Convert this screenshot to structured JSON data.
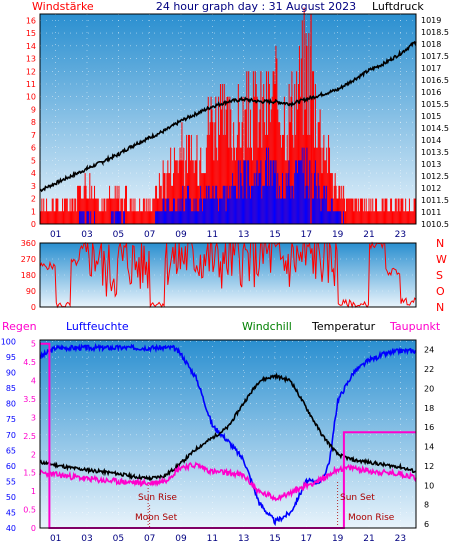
{
  "colors": {
    "red": "#ff0000",
    "blue": "#0000ff",
    "black": "#000000",
    "green": "#008000",
    "magenta": "#ff00cc",
    "navy": "#000080",
    "bg_top": "#2a8fd0",
    "bg_bottom": "#e8f3fb"
  },
  "chart_data": [
    {
      "type": "line",
      "title": "24 hour graph day : 31 August 2023",
      "left_label": "Windstärke",
      "right_label": "Luftdruck",
      "x_ticks": [
        "01",
        "03",
        "05",
        "07",
        "09",
        "11",
        "13",
        "15",
        "17",
        "19",
        "21",
        "23"
      ],
      "x_range": [
        0,
        24
      ],
      "y_left_ticks": [
        0,
        1,
        2,
        3,
        4,
        5,
        6,
        7,
        8,
        9,
        10,
        11,
        12,
        13,
        14,
        15,
        16
      ],
      "y_left_range": [
        0,
        16.5
      ],
      "y_right_ticks": [
        "1010.5",
        "1011",
        "1011.5",
        "1012",
        "1012.5",
        "1013",
        "1013.5",
        "1014",
        "1014.5",
        "1015",
        "1015.5",
        "1016",
        "1016.5",
        "1017",
        "1017.5",
        "1018",
        "1018.5",
        "1019"
      ],
      "y_right_range": [
        1010.5,
        1019.25
      ],
      "series": [
        {
          "color": "#000000",
          "axis": "right",
          "x": [
            0,
            1,
            2,
            3,
            4,
            5,
            6,
            7,
            8,
            9,
            10,
            11,
            12,
            13,
            14,
            15,
            16,
            17,
            18,
            19,
            20,
            21,
            22,
            23,
            24
          ],
          "y": [
            1011.9,
            1012.2,
            1012.5,
            1012.8,
            1013.1,
            1013.4,
            1013.8,
            1014.1,
            1014.4,
            1014.8,
            1015.1,
            1015.4,
            1015.6,
            1015.7,
            1015.6,
            1015.6,
            1015.5,
            1015.7,
            1015.9,
            1016.1,
            1016.5,
            1016.9,
            1017.2,
            1017.6,
            1018.1
          ]
        },
        {
          "color": "#ff0000",
          "axis": "left",
          "style": "gust",
          "x": [
            0,
            1,
            2,
            3,
            4,
            5,
            6,
            7,
            8,
            9,
            10,
            11,
            12,
            13,
            14,
            15,
            16,
            17,
            18,
            19,
            20,
            21,
            22,
            23,
            24
          ],
          "y": [
            2,
            2,
            2,
            4,
            2,
            3,
            2,
            2,
            5,
            7,
            6,
            11,
            9,
            10,
            11,
            12,
            11,
            16,
            9,
            3,
            2,
            2,
            2,
            2,
            2
          ]
        },
        {
          "color": "#0000ff",
          "axis": "left",
          "style": "mean",
          "x": [
            0,
            1,
            2,
            3,
            4,
            5,
            6,
            7,
            8,
            9,
            10,
            11,
            12,
            13,
            14,
            15,
            16,
            17,
            18,
            19,
            20,
            21,
            22,
            23,
            24
          ],
          "y": [
            0,
            0,
            0,
            1,
            0,
            1,
            0,
            0,
            2,
            2,
            2,
            3,
            3,
            4,
            4,
            5,
            4,
            5,
            3,
            1,
            0,
            0,
            0,
            0,
            0
          ]
        }
      ]
    },
    {
      "type": "line",
      "title": "",
      "y_left_ticks": [
        0,
        90,
        180,
        270,
        360
      ],
      "y_left_range": [
        0,
        360
      ],
      "right_labels": [
        "N",
        "W",
        "S",
        "O",
        "N"
      ],
      "series": [
        {
          "color": "#ff0000",
          "style": "direction",
          "x": [
            0,
            1,
            2,
            3,
            4,
            5,
            6,
            7,
            8,
            9,
            10,
            11,
            12,
            13,
            14,
            15,
            16,
            17,
            18,
            19,
            20,
            21,
            22,
            23,
            24
          ],
          "y": [
            230,
            10,
            250,
            300,
            200,
            260,
            240,
            20,
            270,
            290,
            280,
            260,
            280,
            270,
            300,
            250,
            270,
            290,
            270,
            20,
            10,
            350,
            200,
            30,
            260
          ]
        }
      ]
    },
    {
      "type": "line",
      "title": "",
      "legend": [
        "Regen",
        "Luftfeuchte",
        "Windchill",
        "Temperatur",
        "Taupunkt"
      ],
      "x_ticks": [
        "01",
        "03",
        "05",
        "07",
        "09",
        "11",
        "13",
        "15",
        "17",
        "19",
        "21",
        "23"
      ],
      "x_range": [
        0,
        24
      ],
      "y_humidity_ticks": [
        40,
        45,
        50,
        55,
        60,
        65,
        70,
        75,
        80,
        85,
        90,
        95,
        100
      ],
      "y_humidity_range": [
        40,
        100.5
      ],
      "y_rain_ticks": [
        "0",
        "0.5",
        "1",
        "1.5",
        "2",
        "2.5",
        "3",
        "3.5",
        "4",
        "4.5",
        "5"
      ],
      "y_rain_range": [
        0,
        5.1
      ],
      "y_temp_ticks": [
        6,
        8,
        10,
        12,
        14,
        16,
        18,
        20,
        22,
        24
      ],
      "y_temp_range": [
        5.6,
        25
      ],
      "annotations": [
        "Sun Rise",
        "Sun Set",
        "Moon Set",
        "Moon Rise"
      ],
      "series": [
        {
          "name": "Luftfeuchte",
          "color": "#0000ff",
          "axis": "humidity",
          "x": [
            0,
            1,
            2,
            3,
            4,
            5,
            6,
            7,
            8,
            8.5,
            9,
            10,
            11,
            12,
            13,
            14,
            15,
            16,
            17,
            18,
            18.5,
            19,
            20,
            21,
            22,
            23,
            24
          ],
          "y": [
            95,
            98,
            98,
            98,
            98,
            98,
            98,
            98,
            98,
            98,
            96,
            88,
            73,
            68,
            62,
            48,
            42,
            45,
            55,
            55,
            62,
            81,
            90,
            94,
            96,
            97,
            97
          ]
        },
        {
          "name": "Temperatur",
          "color": "#000000",
          "axis": "temp",
          "x": [
            0,
            1,
            2,
            3,
            4,
            5,
            6,
            7,
            8,
            9,
            10,
            11,
            12,
            13,
            14,
            15,
            16,
            17,
            18,
            19,
            20,
            21,
            22,
            23,
            24
          ],
          "y": [
            12.4,
            12.1,
            11.8,
            11.6,
            11.4,
            11.2,
            10.9,
            10.7,
            11.0,
            12.3,
            13.8,
            14.9,
            16.0,
            18.5,
            20.8,
            21.3,
            20.8,
            18.0,
            15.2,
            13.2,
            12.6,
            12.4,
            12.1,
            11.9,
            11.4
          ]
        },
        {
          "name": "Taupunkt",
          "color": "#ff00cc",
          "axis": "temp",
          "x": [
            0,
            1,
            2,
            3,
            4,
            5,
            6,
            7,
            8,
            9,
            10,
            11,
            12,
            13,
            14,
            15,
            16,
            17,
            18,
            19,
            20,
            21,
            22,
            23,
            24
          ],
          "y": [
            11.3,
            11.1,
            10.9,
            10.7,
            10.5,
            10.4,
            10.3,
            10.2,
            10.5,
            11.9,
            12.1,
            11.4,
            11.3,
            11.0,
            9.3,
            8.7,
            9.2,
            10.0,
            10.6,
            11.7,
            11.8,
            11.5,
            11.3,
            11.2,
            10.8
          ]
        },
        {
          "name": "Regen",
          "color": "#ff00cc",
          "axis": "rain",
          "style": "step",
          "x": [
            0,
            0.6,
            0.6,
            6,
            6,
            7,
            7,
            8,
            8,
            19.4,
            19.4,
            24
          ],
          "y": [
            5,
            5,
            0,
            0,
            0,
            0,
            0,
            0,
            0,
            0,
            2.6,
            2.6
          ]
        }
      ]
    }
  ]
}
